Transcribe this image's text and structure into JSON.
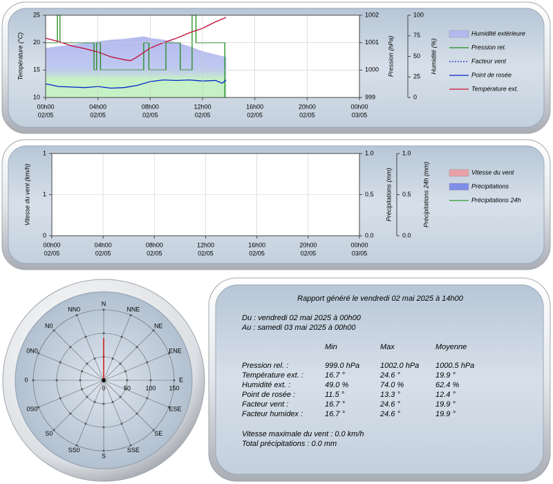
{
  "chart_data": [
    {
      "type": "line",
      "ylabel": "Température (°C)",
      "y2label": "Pression (hPa)",
      "y3label": "Humidité (%)",
      "xlim": [
        0,
        24
      ],
      "xticks": [
        {
          "value": 0,
          "label": [
            "00h00",
            "02/05"
          ]
        },
        {
          "value": 4,
          "label": [
            "04h00",
            "02/05"
          ]
        },
        {
          "value": 8,
          "label": [
            "08h00",
            "02/05"
          ]
        },
        {
          "value": 12,
          "label": [
            "12h00",
            "02/05"
          ]
        },
        {
          "value": 16,
          "label": [
            "16h00",
            "02/05"
          ]
        },
        {
          "value": 20,
          "label": [
            "20h00",
            "02/05"
          ]
        },
        {
          "value": 24,
          "label": [
            "00h00",
            "03/05"
          ]
        }
      ],
      "ylim": [
        10,
        25
      ],
      "yticks": [
        10,
        15,
        20,
        25
      ],
      "y2lim": [
        999,
        1002
      ],
      "y2ticks": [
        999,
        1000,
        1001,
        1002
      ],
      "y3lim": [
        0,
        100
      ],
      "y3ticks": [
        0,
        25,
        50,
        75,
        100
      ],
      "grid": true,
      "series": [
        {
          "name": "Humidité extérieure",
          "kind": "area",
          "axis": "y3",
          "color": "#b4b9f0",
          "x": [
            0,
            1,
            2,
            3,
            4,
            5,
            6,
            7,
            7.5,
            8,
            9,
            10,
            11,
            12,
            13,
            13.8
          ],
          "values": [
            60,
            62,
            64,
            66,
            68,
            70,
            71,
            73,
            74,
            72,
            70,
            67,
            62,
            56,
            52,
            49
          ]
        },
        {
          "name": "Pression rel.",
          "kind": "line",
          "axis": "y2",
          "color": "#1a8a1a",
          "x": [
            0,
            0.9,
            0.9,
            1.1,
            1.1,
            3.7,
            3.7,
            3.9,
            3.9,
            4.2,
            4.2,
            7.5,
            7.5,
            7.9,
            7.9,
            9.2,
            9.2,
            10.3,
            10.3,
            11.2,
            11.2,
            11.5,
            11.5,
            13.7,
            13.7
          ],
          "values": [
            1001,
            1001,
            1002,
            1002,
            1001,
            1001,
            1000,
            1000,
            1001,
            1001,
            1000,
            1000,
            1001,
            1001,
            1000,
            1000,
            1001,
            1001,
            1000,
            1000,
            1002,
            1002,
            1001,
            1001,
            999
          ]
        },
        {
          "name": "Facteur vent",
          "kind": "line",
          "linestyle": "dotted",
          "axis": "y",
          "color": "#2222cc",
          "x": [
            0,
            1,
            2,
            3,
            4,
            5,
            6,
            6.5,
            7,
            8,
            9,
            10,
            11,
            12,
            13,
            13.8
          ],
          "values": [
            20.8,
            20.2,
            19.4,
            18.9,
            18.3,
            17.4,
            16.9,
            16.7,
            17.4,
            19.0,
            20.0,
            20.8,
            21.8,
            22.6,
            23.8,
            24.6
          ]
        },
        {
          "name": "Point de rosée",
          "kind": "line",
          "axis": "y",
          "color": "#0022cc",
          "x": [
            0,
            1,
            2,
            3,
            4,
            5,
            6,
            7,
            8,
            9,
            10,
            11,
            12,
            13,
            13.5,
            13.8
          ],
          "values": [
            12.5,
            12.0,
            11.9,
            11.8,
            12.0,
            11.7,
            11.8,
            12.2,
            12.9,
            13.2,
            13.1,
            13.2,
            13.0,
            13.1,
            12.6,
            13.2
          ]
        },
        {
          "name": "Température ext.",
          "kind": "line",
          "axis": "y",
          "color": "#cc1133",
          "x": [
            0,
            1,
            2,
            3,
            4,
            5,
            6,
            6.5,
            7,
            8,
            9,
            10,
            11,
            12,
            13,
            13.8
          ],
          "values": [
            20.8,
            20.2,
            19.4,
            18.9,
            18.3,
            17.4,
            16.9,
            16.7,
            17.4,
            19.0,
            20.0,
            20.8,
            21.8,
            22.6,
            23.8,
            24.6
          ]
        }
      ]
    },
    {
      "type": "line",
      "ylabel": "Vitesse du vent (km/h)",
      "y2label": "Précipitations (mm)",
      "y3label": "Précipitations 24h (mm)",
      "xlim": [
        0,
        24
      ],
      "xticks": [
        {
          "value": 0,
          "label": [
            "00h00",
            "02/05"
          ]
        },
        {
          "value": 4,
          "label": [
            "04h00",
            "02/05"
          ]
        },
        {
          "value": 8,
          "label": [
            "08h00",
            "02/05"
          ]
        },
        {
          "value": 12,
          "label": [
            "12h00",
            "02/05"
          ]
        },
        {
          "value": 16,
          "label": [
            "16h00",
            "02/05"
          ]
        },
        {
          "value": 20,
          "label": [
            "20h00",
            "02/05"
          ]
        },
        {
          "value": 24,
          "label": [
            "00h00",
            "03/05"
          ]
        }
      ],
      "ylim": [
        0,
        1
      ],
      "yticks": [
        0,
        {
          "value": 0.5,
          "label": "1"
        },
        1
      ],
      "y2lim": [
        0,
        1
      ],
      "y2ticks": [
        {
          "value": 0,
          "label": "0.0"
        },
        {
          "value": 0.5,
          "label": "0.5"
        },
        {
          "value": 1,
          "label": "1.0"
        }
      ],
      "y3lim": [
        0,
        1
      ],
      "y3ticks": [
        {
          "value": 0,
          "label": "0.0"
        },
        {
          "value": 0.5,
          "label": "0.5"
        },
        {
          "value": 1,
          "label": "1.0"
        }
      ],
      "grid": true,
      "series": [
        {
          "name": "Vitesse du vent",
          "kind": "area",
          "color": "#e8a0a8"
        },
        {
          "name": "Précipitations",
          "kind": "area",
          "color": "#7f8fe8"
        },
        {
          "name": "Précipitations 24h",
          "kind": "line",
          "color": "#2a9a2a"
        }
      ]
    },
    {
      "type": "polar",
      "categories": [
        "N",
        "NNE",
        "NE",
        "ENE",
        "E",
        "ESE",
        "SE",
        "SSE",
        "S",
        "SS0",
        "S0",
        "0S0",
        "0",
        "0N0",
        "N0",
        "NN0"
      ],
      "values": [
        90,
        0,
        0,
        0,
        0,
        0,
        0,
        0,
        0,
        0,
        0,
        0,
        0,
        0,
        0,
        0
      ],
      "color": "#cc1111",
      "rlim": [
        0,
        150
      ],
      "rticks": [
        0,
        50,
        100,
        150
      ]
    }
  ],
  "report": {
    "title": "Rapport généré le vendredi 02 mai 2025 à 14h00",
    "from": "Du : vendredi 02 mai 2025 à 00h00",
    "to": "Au : samedi 03 mai 2025 à 00h00",
    "header": [
      "Min",
      "Max",
      "Moyenne"
    ],
    "rows": [
      [
        "Pression rel. :",
        "999.0 hPa",
        "1002.0 hPa",
        "1000.5 hPa"
      ],
      [
        "Température ext. :",
        "16.7 °",
        "24.6 °",
        "19.9 °"
      ],
      [
        "Humidité ext. :",
        "49.0 %",
        "74.0 %",
        "62.4 %"
      ],
      [
        "Point de rosée :",
        "11.5 °",
        "13.3 °",
        "12.4 °"
      ],
      [
        "Facteur vent :",
        "16.7 °",
        "24.6 °",
        "19.9 °"
      ],
      [
        "Facteur humidex :",
        "16.7 °",
        "24.6 °",
        "19.9 °"
      ]
    ],
    "wind_max": "Vitesse maximale du vent : 0.0 km/h",
    "rain_total": "Total précipitations : 0.0 mm"
  }
}
